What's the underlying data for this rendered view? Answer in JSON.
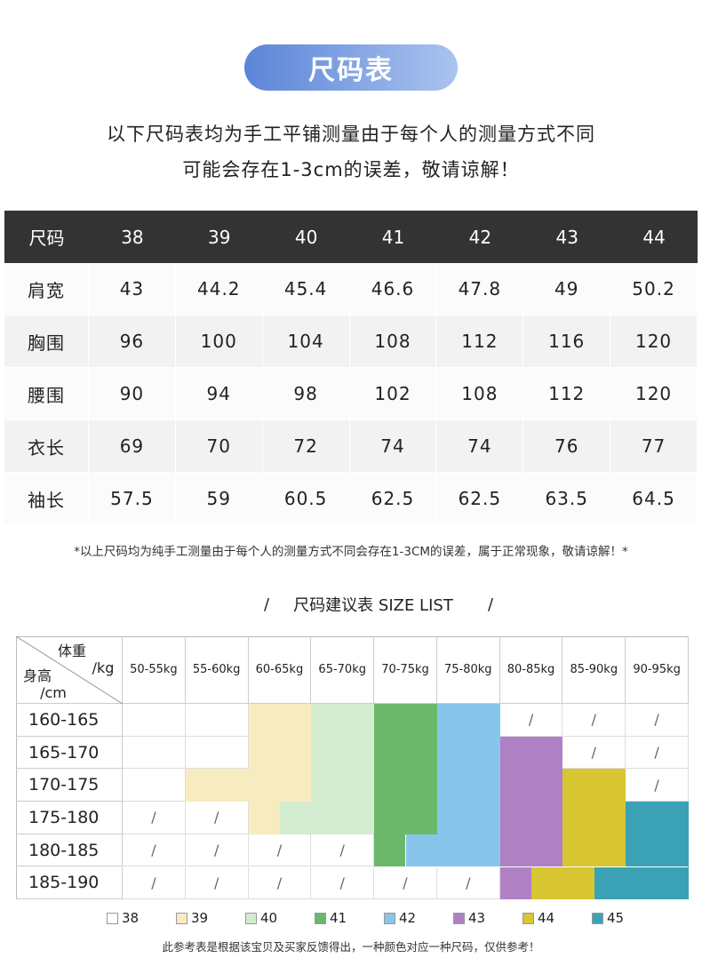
{
  "header": {
    "title": "尺码表",
    "notes": [
      "以下尺码表均为手工平铺测量由于每个人的测量方式不同",
      "可能会存在1-3cm的误差，敬请谅解！"
    ]
  },
  "size_table": {
    "header": [
      "尺码",
      "38",
      "39",
      "40",
      "41",
      "42",
      "43",
      "44"
    ],
    "rows": [
      [
        "肩宽",
        "43",
        "44.2",
        "45.4",
        "46.6",
        "47.8",
        "49",
        "50.2"
      ],
      [
        "胸围",
        "96",
        "100",
        "104",
        "108",
        "112",
        "116",
        "120"
      ],
      [
        "腰围",
        "90",
        "94",
        "98",
        "102",
        "108",
        "112",
        "120"
      ],
      [
        "衣长",
        "69",
        "70",
        "72",
        "74",
        "74",
        "76",
        "77"
      ],
      [
        "袖长",
        "57.5",
        "59",
        "60.5",
        "62.5",
        "62.5",
        "63.5",
        "64.5"
      ]
    ]
  },
  "footnote": "*以上尺码均为纯手工测量由于每个人的测量方式不同会存在1-3CM的误差，属于正常现象，敬请谅解！*",
  "suggest": {
    "title_left": "/",
    "title": "尺码建议表 SIZE LIST",
    "title_right": "/",
    "corner": {
      "weight": "体重",
      "weight_unit": "/kg",
      "height": "身高",
      "height_unit": "/cm"
    },
    "weights": [
      "50-55kg",
      "55-60kg",
      "60-65kg",
      "65-70kg",
      "70-75kg",
      "75-80kg",
      "80-85kg",
      "85-90kg",
      "90-95kg"
    ],
    "heights": [
      "160-165",
      "165-170",
      "170-175",
      "175-180",
      "180-185",
      "185-190"
    ],
    "grid": [
      [
        "38",
        "38",
        "39",
        "40",
        "41",
        "42",
        "/",
        "/",
        "/"
      ],
      [
        "38",
        "38",
        "39",
        "40",
        "41",
        "42",
        "43",
        "/",
        "/"
      ],
      [
        "38",
        "39",
        "39",
        "40",
        "41",
        "42",
        "43",
        "44",
        "/"
      ],
      [
        "/",
        "/",
        [
          "39",
          "40"
        ],
        "40",
        "41",
        "42",
        "43",
        "44",
        "45"
      ],
      [
        "/",
        "/",
        "/",
        "/",
        [
          "41",
          "42"
        ],
        "42",
        "43",
        "44",
        "45"
      ],
      [
        "/",
        "/",
        "/",
        "/",
        "/",
        "/",
        [
          "43",
          "44"
        ],
        [
          "44",
          "45"
        ],
        "45"
      ]
    ],
    "legend": [
      {
        "label": "38",
        "color": "#ffffff"
      },
      {
        "label": "39",
        "color": "#f7ecc0"
      },
      {
        "label": "40",
        "color": "#d3ecd0"
      },
      {
        "label": "41",
        "color": "#6cb86a"
      },
      {
        "label": "42",
        "color": "#88c5eb"
      },
      {
        "label": "43",
        "color": "#b080c5"
      },
      {
        "label": "44",
        "color": "#d8c633"
      },
      {
        "label": "45",
        "color": "#3aa2b4"
      }
    ],
    "note": "此参考表是根据该宝贝及买家反馈得出，一种颜色对应一种尺码，仅供参考！"
  }
}
